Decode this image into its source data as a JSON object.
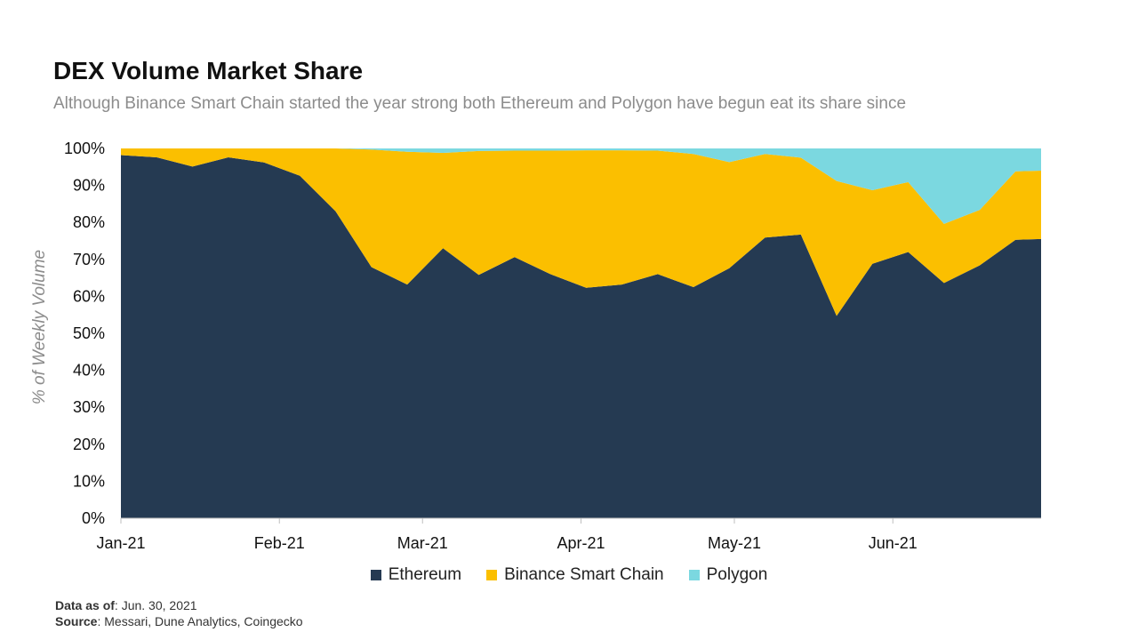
{
  "header": {
    "title": "DEX Volume Market Share",
    "subtitle": "Although Binance Smart Chain started the year strong both Ethereum and Polygon have begun eat its share since"
  },
  "footer": {
    "data_as_of_label": "Data as of",
    "data_as_of_value": ": Jun. 30, 2021",
    "source_label": "Source",
    "source_value": ": Messari, Dune Analytics, Coingecko"
  },
  "colors": {
    "ethereum": "#253a52",
    "binance": "#fbbf00",
    "polygon": "#7bd8e0"
  },
  "chart_data": {
    "type": "area",
    "stacked": true,
    "ylabel": "% of Weekly Volume",
    "xlabel": "",
    "ylim": [
      0,
      100
    ],
    "y_ticks": [
      "0%",
      "10%",
      "20%",
      "30%",
      "40%",
      "50%",
      "60%",
      "70%",
      "80%",
      "90%",
      "100%"
    ],
    "x_ticks": [
      "Jan-21",
      "Feb-21",
      "Mar-21",
      "Apr-21",
      "May-21",
      "Jun-21"
    ],
    "x": [
      "2021-01-01",
      "2021-01-08",
      "2021-01-15",
      "2021-01-22",
      "2021-01-29",
      "2021-02-05",
      "2021-02-12",
      "2021-02-19",
      "2021-02-26",
      "2021-03-05",
      "2021-03-12",
      "2021-03-19",
      "2021-03-26",
      "2021-04-02",
      "2021-04-09",
      "2021-04-16",
      "2021-04-23",
      "2021-04-30",
      "2021-05-07",
      "2021-05-14",
      "2021-05-21",
      "2021-05-28",
      "2021-06-04",
      "2021-06-11",
      "2021-06-18",
      "2021-06-25",
      "2021-06-30"
    ],
    "series": [
      {
        "name": "Ethereum",
        "values": [
          98.2,
          97.6,
          95.1,
          97.6,
          96.2,
          92.6,
          83.0,
          67.9,
          63.2,
          73.0,
          65.8,
          70.6,
          66.0,
          62.3,
          63.2,
          66.0,
          62.5,
          67.6,
          75.9,
          76.7,
          54.7,
          68.8,
          72.0,
          63.6,
          68.4,
          75.3,
          75.5
        ]
      },
      {
        "name": "Binance Smart Chain",
        "values": [
          1.8,
          2.4,
          4.9,
          2.4,
          3.8,
          7.4,
          17.0,
          31.8,
          35.9,
          25.8,
          33.5,
          28.8,
          33.4,
          37.2,
          36.3,
          33.4,
          36.0,
          28.7,
          22.6,
          20.8,
          36.5,
          19.9,
          18.9,
          16.0,
          15.0,
          18.5,
          18.5
        ]
      },
      {
        "name": "Polygon",
        "values": [
          0.0,
          0.0,
          0.0,
          0.0,
          0.0,
          0.0,
          0.0,
          0.3,
          0.9,
          1.2,
          0.7,
          0.6,
          0.6,
          0.5,
          0.5,
          0.6,
          1.5,
          3.7,
          1.5,
          2.5,
          8.8,
          11.3,
          9.1,
          20.4,
          16.6,
          6.2,
          6.0
        ]
      }
    ],
    "legend": [
      "Ethereum",
      "Binance Smart Chain",
      "Polygon"
    ],
    "legend_position": "bottom",
    "grid": false
  }
}
